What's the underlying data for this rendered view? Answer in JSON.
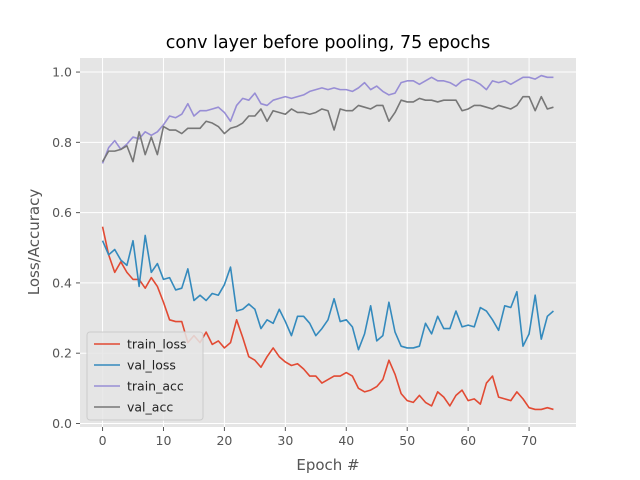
{
  "chart_data": {
    "type": "line",
    "title": "conv layer before pooling, 75 epochs",
    "xlabel": "Epoch #",
    "ylabel": "Loss/Accuracy",
    "xlim": [
      -3.7,
      77.7
    ],
    "ylim": [
      -0.01,
      1.04
    ],
    "xticks": [
      0,
      10,
      20,
      30,
      40,
      50,
      60,
      70
    ],
    "yticks": [
      0.0,
      0.2,
      0.4,
      0.6,
      0.8,
      1.0
    ],
    "xtick_labels": [
      "0",
      "10",
      "20",
      "30",
      "40",
      "50",
      "60",
      "70"
    ],
    "ytick_labels": [
      "0.0",
      "0.2",
      "0.4",
      "0.6",
      "0.8",
      "1.0"
    ],
    "grid": true,
    "legend_position": "lower-left",
    "background": "#e5e5e5",
    "series": [
      {
        "name": "train_loss",
        "color": "#e24a33",
        "values": [
          0.56,
          0.48,
          0.43,
          0.46,
          0.43,
          0.41,
          0.41,
          0.385,
          0.415,
          0.39,
          0.345,
          0.295,
          0.29,
          0.29,
          0.23,
          0.25,
          0.23,
          0.26,
          0.225,
          0.235,
          0.215,
          0.23,
          0.295,
          0.245,
          0.19,
          0.18,
          0.16,
          0.19,
          0.215,
          0.19,
          0.175,
          0.165,
          0.17,
          0.155,
          0.135,
          0.135,
          0.115,
          0.125,
          0.135,
          0.135,
          0.145,
          0.135,
          0.1,
          0.09,
          0.095,
          0.105,
          0.125,
          0.18,
          0.14,
          0.085,
          0.065,
          0.06,
          0.08,
          0.06,
          0.05,
          0.09,
          0.075,
          0.05,
          0.08,
          0.095,
          0.065,
          0.07,
          0.055,
          0.115,
          0.135,
          0.075,
          0.07,
          0.065,
          0.09,
          0.07,
          0.045,
          0.04,
          0.04,
          0.045,
          0.04
        ]
      },
      {
        "name": "val_loss",
        "color": "#348abd",
        "values": [
          0.52,
          0.48,
          0.495,
          0.465,
          0.45,
          0.52,
          0.39,
          0.535,
          0.43,
          0.455,
          0.41,
          0.415,
          0.38,
          0.385,
          0.44,
          0.35,
          0.365,
          0.35,
          0.37,
          0.365,
          0.395,
          0.445,
          0.32,
          0.325,
          0.34,
          0.325,
          0.27,
          0.295,
          0.285,
          0.325,
          0.29,
          0.25,
          0.305,
          0.305,
          0.285,
          0.25,
          0.27,
          0.295,
          0.355,
          0.29,
          0.295,
          0.275,
          0.21,
          0.255,
          0.335,
          0.235,
          0.25,
          0.345,
          0.26,
          0.22,
          0.215,
          0.215,
          0.22,
          0.285,
          0.255,
          0.305,
          0.27,
          0.27,
          0.32,
          0.275,
          0.28,
          0.275,
          0.33,
          0.32,
          0.295,
          0.265,
          0.335,
          0.33,
          0.375,
          0.22,
          0.255,
          0.365,
          0.24,
          0.305,
          0.32
        ]
      },
      {
        "name": "train_acc",
        "color": "#988ed5",
        "values": [
          0.74,
          0.785,
          0.805,
          0.78,
          0.795,
          0.815,
          0.81,
          0.83,
          0.82,
          0.83,
          0.85,
          0.875,
          0.87,
          0.88,
          0.91,
          0.875,
          0.89,
          0.89,
          0.895,
          0.9,
          0.885,
          0.86,
          0.905,
          0.925,
          0.92,
          0.94,
          0.91,
          0.905,
          0.92,
          0.925,
          0.93,
          0.925,
          0.93,
          0.935,
          0.945,
          0.95,
          0.955,
          0.95,
          0.955,
          0.95,
          0.95,
          0.945,
          0.955,
          0.97,
          0.95,
          0.96,
          0.945,
          0.935,
          0.94,
          0.97,
          0.975,
          0.975,
          0.965,
          0.975,
          0.985,
          0.975,
          0.975,
          0.97,
          0.96,
          0.975,
          0.98,
          0.975,
          0.965,
          0.95,
          0.975,
          0.97,
          0.975,
          0.965,
          0.975,
          0.985,
          0.985,
          0.98,
          0.99,
          0.985,
          0.985
        ]
      },
      {
        "name": "val_acc",
        "color": "#777777",
        "values": [
          0.745,
          0.775,
          0.775,
          0.78,
          0.79,
          0.745,
          0.83,
          0.765,
          0.815,
          0.765,
          0.845,
          0.835,
          0.835,
          0.825,
          0.84,
          0.84,
          0.84,
          0.86,
          0.855,
          0.845,
          0.825,
          0.84,
          0.845,
          0.855,
          0.875,
          0.875,
          0.895,
          0.86,
          0.89,
          0.885,
          0.88,
          0.895,
          0.885,
          0.885,
          0.88,
          0.885,
          0.895,
          0.89,
          0.835,
          0.895,
          0.89,
          0.89,
          0.905,
          0.9,
          0.895,
          0.905,
          0.905,
          0.86,
          0.885,
          0.92,
          0.915,
          0.915,
          0.925,
          0.92,
          0.92,
          0.915,
          0.92,
          0.92,
          0.92,
          0.89,
          0.895,
          0.905,
          0.905,
          0.9,
          0.895,
          0.905,
          0.9,
          0.895,
          0.905,
          0.93,
          0.93,
          0.89,
          0.93,
          0.895,
          0.9
        ]
      }
    ]
  }
}
